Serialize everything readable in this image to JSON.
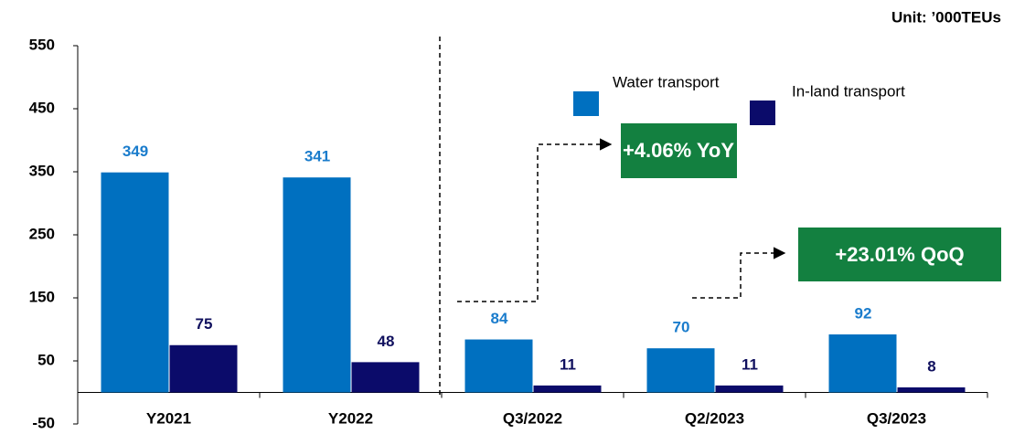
{
  "chart_data": {
    "type": "bar",
    "unit": "Unit: ’000TEUs",
    "categories": [
      "Y2021",
      "Y2022",
      "Q3/2022",
      "Q2/2023",
      "Q3/2023"
    ],
    "series": [
      {
        "name": "Water transport",
        "color": "#0070c0",
        "label_color": "#1a7ccc",
        "values": [
          349,
          341,
          84,
          70,
          92
        ]
      },
      {
        "name": "In-land transport",
        "color": "#0b0b6a",
        "label_color": "#10105e",
        "values": [
          75,
          48,
          11,
          11,
          8
        ]
      }
    ],
    "ylim": [
      -50,
      550
    ],
    "yticks": [
      -50,
      50,
      150,
      250,
      350,
      450,
      550
    ],
    "grid": false,
    "legend": "top-right",
    "annotations": [
      "+4.06%  YoY",
      "+23.01% QoQ"
    ],
    "annotation_color": "#138040"
  }
}
